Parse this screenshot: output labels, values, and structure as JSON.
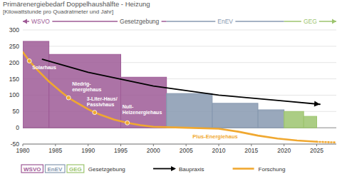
{
  "chart_data": {
    "type": "step_area",
    "title": "Primärenergiebedarf Doppelhaushälfte - Heizung",
    "subtitle": "[Kilowattstunde pro Quadratmeter und Jahr]",
    "xlim": [
      1980,
      2028
    ],
    "xticks": [
      1980,
      1985,
      1990,
      1995,
      2000,
      2005,
      2010,
      2015,
      2020,
      2025
    ],
    "ylim": [
      -50,
      300
    ],
    "yticks": [
      -50,
      0,
      50,
      100,
      150,
      200,
      250,
      300
    ],
    "grid": true,
    "periods_label": "Gesetzgebung",
    "periods": [
      {
        "label": "WSVO",
        "from": 1980,
        "to": 2002,
        "color": "#9e5a96"
      },
      {
        "label": "EnEV",
        "from": 2002,
        "to": 2020,
        "color": "#8799b0"
      },
      {
        "label": "GEG",
        "from": 2020,
        "to": 2028,
        "color": "#9cc46e"
      }
    ],
    "legend_group": "Gesetzgebung",
    "series": [
      {
        "name": "WSVO",
        "type": "step",
        "color": "#9e5a96",
        "x": [
          1980,
          1984,
          1995
        ],
        "x_end": [
          1984,
          1995,
          2002
        ],
        "values": [
          265,
          225,
          155
        ]
      },
      {
        "name": "EnEV",
        "type": "step",
        "color": "#8799b0",
        "x": [
          2002,
          2009,
          2016
        ],
        "x_end": [
          2009,
          2016,
          2020
        ],
        "values": [
          105,
          75,
          55
        ]
      },
      {
        "name": "GEG",
        "type": "step",
        "color": "#9cc46e",
        "x": [
          2020,
          2023
        ],
        "x_end": [
          2023,
          2025
        ],
        "values": [
          50,
          35
        ]
      },
      {
        "name": "Baupraxis",
        "type": "line",
        "color": "#000000",
        "marker": "arrow",
        "line_style": "solid",
        "x": [
          1983,
          1990,
          2000,
          2010,
          2020,
          2025.5
        ],
        "values": [
          210,
          170,
          128,
          100,
          82,
          72
        ]
      },
      {
        "name": "Forschung",
        "type": "line",
        "color": "#f0a830",
        "line_style": "solid",
        "x": [
          1980,
          1981,
          1982,
          1984,
          1986,
          1987,
          1988,
          1990,
          1991,
          1992,
          1994,
          1996,
          1998,
          2000,
          2005,
          2010,
          2013,
          2016,
          2019,
          2022,
          2025
        ],
        "values": [
          232,
          205,
          182,
          142,
          108,
          92,
          80,
          57,
          47,
          39,
          25,
          15,
          8,
          3,
          0,
          -3,
          -12,
          -24,
          -33,
          -39,
          -43
        ],
        "projection_x": [
          2025,
          2028
        ],
        "projection_values": [
          -43,
          -45
        ]
      }
    ],
    "milestones": [
      {
        "label": "Solarhaus",
        "x": 1981,
        "y": 205
      },
      {
        "label": "Niedrig-\nenergiehaus",
        "x": 1987,
        "y": 92
      },
      {
        "label": "3-Liter-Haus/\nPassivhaus",
        "x": 1991,
        "y": 47
      },
      {
        "label": "Null-\nHeizenergiehaus",
        "x": 1996,
        "y": 15
      }
    ],
    "annotations": [
      {
        "text": "Plus-Energiehaus",
        "x": 2006,
        "y": -33
      }
    ]
  }
}
